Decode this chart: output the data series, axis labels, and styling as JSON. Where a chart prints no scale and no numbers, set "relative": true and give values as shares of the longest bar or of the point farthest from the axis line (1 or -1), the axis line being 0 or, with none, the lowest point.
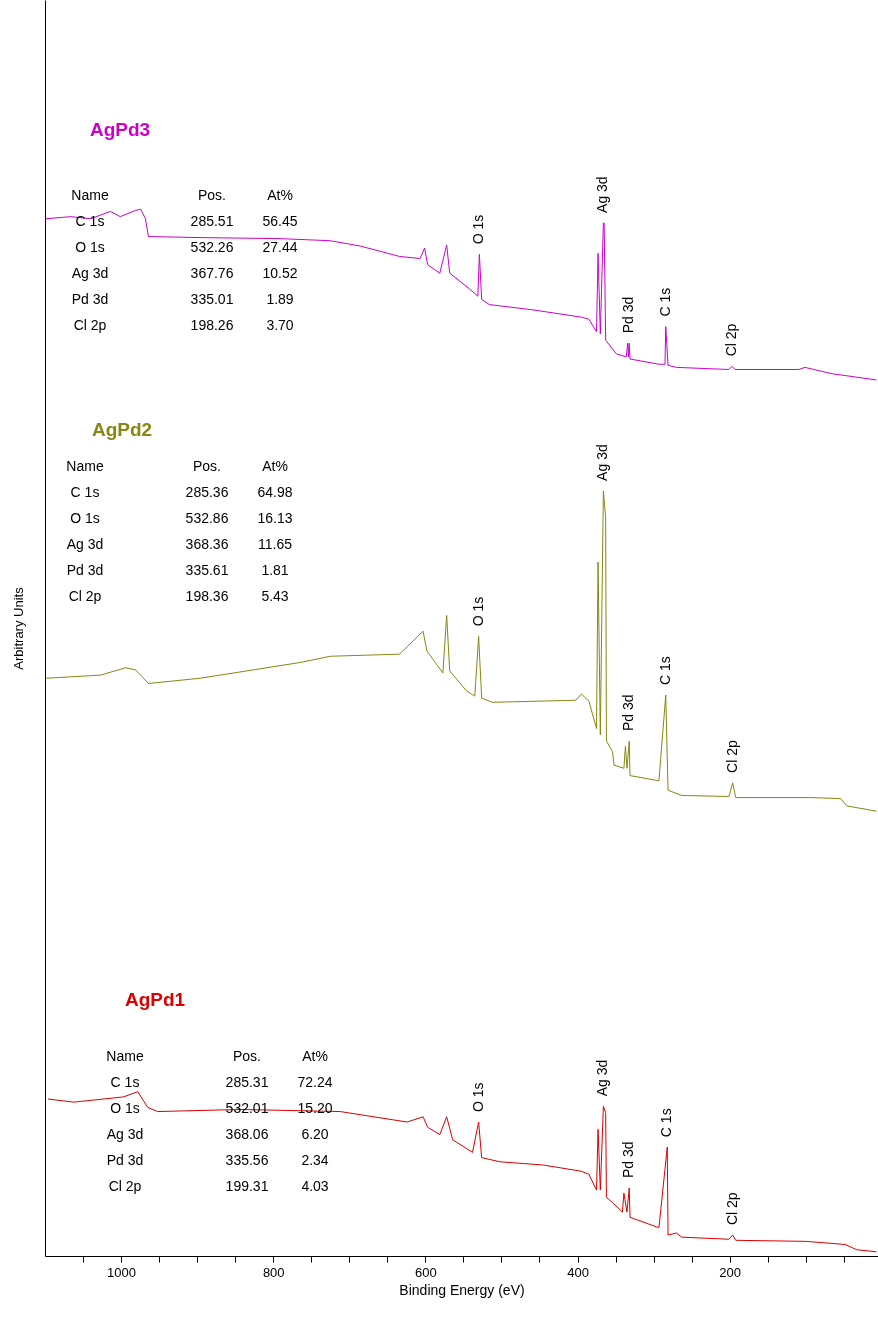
{
  "chart_data": {
    "type": "line",
    "relative": true,
    "xlabel": "Binding Energy (eV)",
    "ylabel": "Arbitrary Units",
    "xlim": [
      1100,
      5
    ],
    "xticks": [
      {
        "value": 50,
        "label": null
      },
      {
        "value": 100,
        "label": null
      },
      {
        "value": 150,
        "label": null
      },
      200,
      {
        "value": 250,
        "label": null
      },
      {
        "value": 300,
        "label": null
      },
      {
        "value": 350,
        "label": null
      },
      400,
      {
        "value": 450,
        "label": null
      },
      {
        "value": 500,
        "label": null
      },
      {
        "value": 550,
        "label": null
      },
      600,
      {
        "value": 650,
        "label": null
      },
      {
        "value": 700,
        "label": null
      },
      {
        "value": 750,
        "label": null
      },
      800,
      {
        "value": 850,
        "label": null
      },
      {
        "value": 900,
        "label": null
      },
      {
        "value": 950,
        "label": null
      },
      1000,
      {
        "value": 1050,
        "label": null
      }
    ],
    "grid": false,
    "series": [
      {
        "name": "AgPd3",
        "color": "#cc00cc",
        "x": [
          1099,
          1066,
          1040,
          1014,
          1001,
          981,
          974,
          968,
          964,
          895,
          791,
          725,
          686,
          634,
          607,
          601,
          597,
          581,
          572,
          568,
          542,
          531,
          529,
          526,
          516,
          459,
          395,
          385,
          375,
          373,
          370,
          366,
          365,
          363,
          349,
          336,
          334,
          333,
          332,
          331,
          293,
          285,
          284,
          281,
          270,
          201,
          197,
          193,
          109,
          101,
          66,
          7
        ],
        "values": [
          0.991,
          0.993,
          0.991,
          0.998,
          0.993,
          0.999,
          1.0,
          0.991,
          0.974,
          0.973,
          0.972,
          0.97,
          0.965,
          0.955,
          0.953,
          0.963,
          0.947,
          0.939,
          0.966,
          0.939,
          0.924,
          0.917,
          0.957,
          0.914,
          0.909,
          0.904,
          0.897,
          0.895,
          0.883,
          0.958,
          0.881,
          0.987,
          0.987,
          0.875,
          0.862,
          0.859,
          0.872,
          0.859,
          0.872,
          0.857,
          0.852,
          0.852,
          0.888,
          0.851,
          0.849,
          0.847,
          0.85,
          0.847,
          0.847,
          0.849,
          0.843,
          0.837
        ]
      },
      {
        "name": "AgPd2",
        "color": "#878712",
        "x": [
          1099,
          1027,
          994,
          981,
          964,
          896,
          765,
          725,
          634,
          603,
          598,
          577,
          572,
          568,
          546,
          535,
          530,
          526,
          512,
          402,
          395,
          385,
          375,
          373,
          370,
          366,
          363,
          362,
          354,
          352,
          339,
          337,
          335,
          332,
          331,
          293,
          284,
          281,
          263,
          201,
          196,
          192,
          96,
          54,
          46,
          7
        ],
        "values": [
          0.552,
          0.555,
          0.562,
          0.56,
          0.547,
          0.552,
          0.567,
          0.573,
          0.575,
          0.597,
          0.578,
          0.557,
          0.612,
          0.559,
          0.54,
          0.535,
          0.592,
          0.533,
          0.529,
          0.531,
          0.537,
          0.53,
          0.504,
          0.663,
          0.498,
          0.731,
          0.705,
          0.492,
          0.482,
          0.469,
          0.466,
          0.487,
          0.466,
          0.492,
          0.459,
          0.454,
          0.536,
          0.445,
          0.44,
          0.439,
          0.452,
          0.438,
          0.438,
          0.437,
          0.43,
          0.425
        ]
      },
      {
        "name": "AgPd1",
        "color": "#dd0000",
        "x": [
          1096,
          1062,
          997,
          978,
          965,
          952,
          843,
          712,
          624,
          603,
          597,
          581,
          572,
          564,
          538,
          530,
          526,
          502,
          446,
          395,
          385,
          375,
          373,
          370,
          366,
          363,
          362,
          354,
          341,
          339,
          335,
          332,
          331,
          293,
          282,
          281,
          270,
          263,
          201,
          196,
          192,
          100,
          48,
          33,
          7
        ],
        "values": [
          0.15,
          0.147,
          0.152,
          0.157,
          0.142,
          0.138,
          0.14,
          0.138,
          0.128,
          0.133,
          0.123,
          0.116,
          0.133,
          0.111,
          0.099,
          0.128,
          0.094,
          0.09,
          0.087,
          0.081,
          0.078,
          0.063,
          0.121,
          0.063,
          0.143,
          0.137,
          0.056,
          0.051,
          0.042,
          0.06,
          0.042,
          0.065,
          0.037,
          0.027,
          0.104,
          0.02,
          0.022,
          0.018,
          0.016,
          0.02,
          0.015,
          0.014,
          0.011,
          0.006,
          0.004
        ]
      }
    ],
    "annotations": [
      "Name\tPos.\tAt%",
      "C 1s\t285.51\t56.45",
      "O 1s\t532.26\t27.44",
      "Ag 3d\t367.76\t10.52",
      "Pd 3d\t335.01\t1.89",
      "Cl 2p\t198.26\t3.70",
      "Name\tPos.\tAt%",
      "C 1s\t285.36\t64.98",
      "O 1s\t532.86\t16.13",
      "Ag 3d\t368.36\t11.65",
      "Pd 3d\t335.61\t1.81",
      "Cl 2p\t198.36\t5.43",
      "Name\tPos.\tAt%",
      "C 1s\t285.31\t72.24",
      "O 1s\t532.01\t15.20",
      "Ag 3d\t368.06\t6.20",
      "Pd 3d\t335.56\t2.34",
      "Cl 2p\t199.31\t4.03",
      {
        "text": "O 1s",
        "x": 529,
        "y": 0.957
      },
      {
        "text": "Ag 3d",
        "x": 366,
        "y": 0.987
      },
      {
        "text": "Pd 3d",
        "x": 332,
        "y": 0.872
      },
      {
        "text": "C 1s",
        "x": 284,
        "y": 0.888
      },
      {
        "text": "Cl 2p",
        "x": 197,
        "y": 0.85
      },
      {
        "text": "O 1s",
        "x": 530,
        "y": 0.592
      },
      {
        "text": "Ag 3d",
        "x": 366,
        "y": 0.731
      },
      {
        "text": "Pd 3d",
        "x": 332,
        "y": 0.492
      },
      {
        "text": "C 1s",
        "x": 284,
        "y": 0.536
      },
      {
        "text": "Cl 2p",
        "x": 196,
        "y": 0.452
      },
      {
        "text": "O 1s",
        "x": 530,
        "y": 0.128
      },
      {
        "text": "Ag 3d",
        "x": 366,
        "y": 0.143
      },
      {
        "text": "Pd 3d",
        "x": 332,
        "y": 0.065
      },
      {
        "text": "C 1s",
        "x": 282,
        "y": 0.104
      },
      {
        "text": "Cl 2p",
        "x": 196,
        "y": 0.02
      }
    ]
  }
}
